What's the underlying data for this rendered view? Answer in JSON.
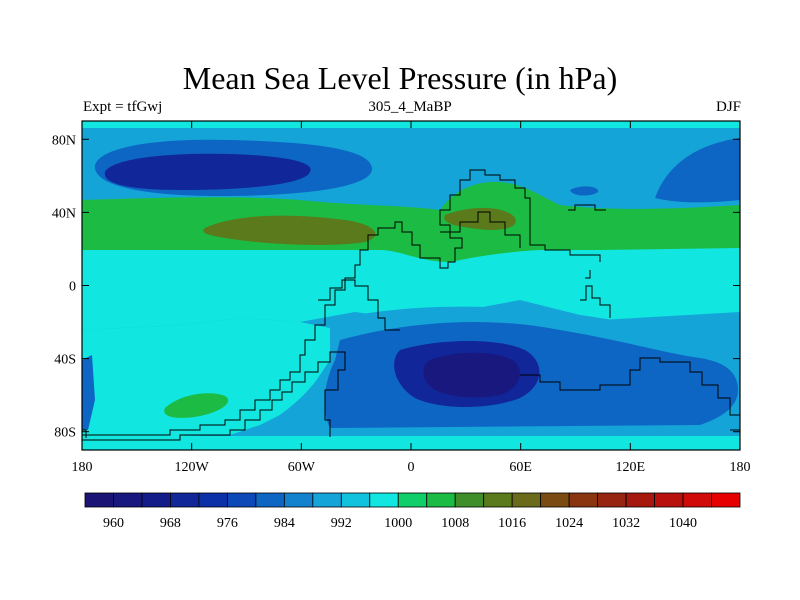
{
  "figure": {
    "title": "Mean Sea Level Pressure (in hPa)",
    "left_label": "Expt = tfGwj",
    "center_label": "305_4_MaBP",
    "right_label": "DJF"
  },
  "axes": {
    "y_ticks": [
      "80N",
      "40N",
      "0",
      "40S",
      "80S"
    ],
    "y_values": [
      80,
      40,
      0,
      -40,
      -80
    ],
    "x_ticks": [
      "180",
      "120W",
      "60W",
      "0",
      "60E",
      "120E",
      "180"
    ],
    "x_values": [
      -180,
      -120,
      -60,
      0,
      60,
      120,
      180
    ],
    "lon_range": [
      -180,
      180
    ],
    "lat_range": [
      -90,
      90
    ]
  },
  "colorbar": {
    "colors": [
      "#1c1474",
      "#18187f",
      "#141c8a",
      "#102699",
      "#0c30a8",
      "#0c48b8",
      "#0e66c4",
      "#1282cf",
      "#14a4d8",
      "#10c2de",
      "#12e6e0",
      "#10cf6a",
      "#1cbb44",
      "#3f8e2a",
      "#5a7a1c",
      "#6a6a1a",
      "#7a4c14",
      "#8a3410",
      "#962410",
      "#a6180e",
      "#b8100c",
      "#d00a08",
      "#e60000"
    ],
    "labels": [
      "960",
      "968",
      "976",
      "984",
      "992",
      "1000",
      "1008",
      "1016",
      "1024",
      "1032",
      "1040"
    ]
  },
  "colors": {
    "c984": "#0e66c4",
    "c992": "#14a4d8",
    "c1000": "#12e6e0",
    "c1008": "#1cbb44",
    "c1016": "#5a7a1c",
    "c976": "#102699",
    "c968": "#18187f",
    "c960": "#1c1474"
  }
}
